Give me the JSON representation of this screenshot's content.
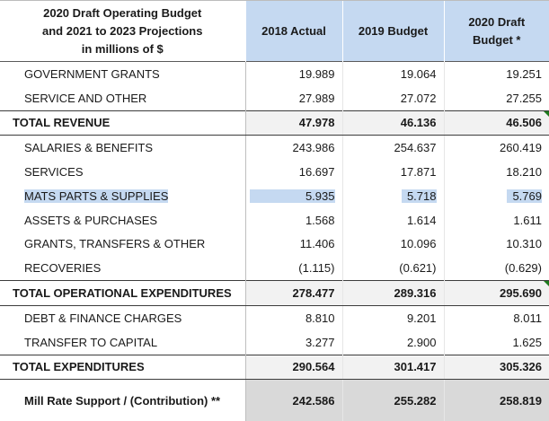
{
  "header": {
    "title_lines": [
      "2020 Draft Operating Budget",
      "and 2021 to 2023 Projections",
      "in millions of $"
    ],
    "col_2018": "2018 Actual",
    "col_2019": "2019 Budget",
    "col_2020_lines": [
      "2020 Draft",
      "Budget *"
    ]
  },
  "rows": [
    {
      "label": "GOVERNMENT GRANTS",
      "v2018": "19.989",
      "v2019": "19.064",
      "v2020": "19.251"
    },
    {
      "label": "SERVICE AND OTHER",
      "v2018": "27.989",
      "v2019": "27.072",
      "v2020": "27.255"
    },
    {
      "label": "TOTAL REVENUE",
      "v2018": "47.978",
      "v2019": "46.136",
      "v2020": "46.506"
    },
    {
      "label": "SALARIES & BENEFITS",
      "v2018": "243.986",
      "v2019": "254.637",
      "v2020": "260.419"
    },
    {
      "label": "SERVICES",
      "v2018": "16.697",
      "v2019": "17.871",
      "v2020": "18.210"
    },
    {
      "label": "MATS PARTS & SUPPLIES",
      "v2018": "5.935",
      "v2019": "5.718",
      "v2020": "5.769"
    },
    {
      "label": "ASSETS & PURCHASES",
      "v2018": "1.568",
      "v2019": "1.614",
      "v2020": "1.611"
    },
    {
      "label": "GRANTS, TRANSFERS & OTHER",
      "v2018": "11.406",
      "v2019": "10.096",
      "v2020": "10.310"
    },
    {
      "label": "RECOVERIES",
      "v2018": "(1.115)",
      "v2019": "(0.621)",
      "v2020": "(0.629)"
    },
    {
      "label": "TOTAL OPERATIONAL EXPENDITURES",
      "v2018": "278.477",
      "v2019": "289.316",
      "v2020": "295.690"
    },
    {
      "label": "DEBT & FINANCE CHARGES",
      "v2018": "8.810",
      "v2019": "9.201",
      "v2020": "8.011"
    },
    {
      "label": "TRANSFER TO CAPITAL",
      "v2018": "3.277",
      "v2019": "2.900",
      "v2020": "1.625"
    },
    {
      "label": "TOTAL EXPENDITURES",
      "v2018": "290.564",
      "v2019": "301.417",
      "v2020": "305.326"
    },
    {
      "label": "Mill Rate Support / (Contribution) **",
      "v2018": "242.586",
      "v2019": "255.282",
      "v2020": "258.819"
    }
  ],
  "colors": {
    "header_fill": "#c5d9f1",
    "selection_highlight": "#c5d9f1",
    "total_fill": "#f2f2f2",
    "mill_fill": "#d9d9d9",
    "comment_flag": "#1e7a1e"
  }
}
